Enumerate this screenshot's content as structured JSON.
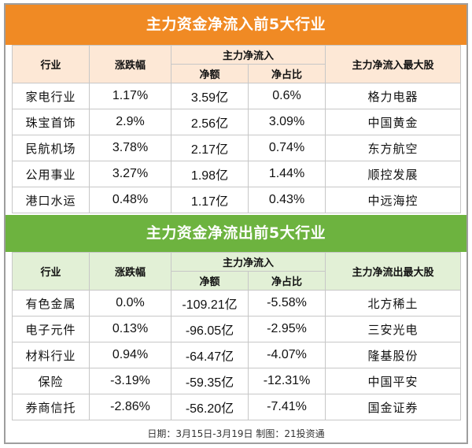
{
  "inflow": {
    "title": "主力资金净流入前5大行业",
    "headers": {
      "industry": "行业",
      "change": "涨跌幅",
      "main_net": "主力净流入",
      "net_amount": "净额",
      "net_ratio": "净占比",
      "top_stock": "主力净流入最大股"
    },
    "rows": [
      {
        "industry": "家电行业",
        "change": "1.17%",
        "amount": "3.59亿",
        "ratio": "0.6%",
        "stock": "格力电器"
      },
      {
        "industry": "珠宝首饰",
        "change": "2.9%",
        "amount": "2.56亿",
        "ratio": "3.09%",
        "stock": "中国黄金"
      },
      {
        "industry": "民航机场",
        "change": "3.78%",
        "amount": "2.17亿",
        "ratio": "0.74%",
        "stock": "东方航空"
      },
      {
        "industry": "公用事业",
        "change": "3.27%",
        "amount": "1.98亿",
        "ratio": "1.44%",
        "stock": "顺控发展"
      },
      {
        "industry": "港口水运",
        "change": "0.48%",
        "amount": "1.17亿",
        "ratio": "0.43%",
        "stock": "中远海控"
      }
    ]
  },
  "outflow": {
    "title": "主力资金净流出前5大行业",
    "headers": {
      "industry": "行业",
      "change": "涨跌幅",
      "main_net": "主力净流入",
      "net_amount": "净额",
      "net_ratio": "净占比",
      "top_stock": "主力净流出最大股"
    },
    "rows": [
      {
        "industry": "有色金属",
        "change": "0.0%",
        "amount": "-109.21亿",
        "ratio": "-5.58%",
        "stock": "北方稀土"
      },
      {
        "industry": "电子元件",
        "change": "0.13%",
        "amount": "-96.05亿",
        "ratio": "-2.95%",
        "stock": "三安光电"
      },
      {
        "industry": "材料行业",
        "change": "0.94%",
        "amount": "-64.47亿",
        "ratio": "-4.07%",
        "stock": "隆基股份"
      },
      {
        "industry": "保险",
        "change": "-3.19%",
        "amount": "-59.35亿",
        "ratio": "-12.31%",
        "stock": "中国平安"
      },
      {
        "industry": "券商信托",
        "change": "-2.86%",
        "amount": "-56.20亿",
        "ratio": "-7.41%",
        "stock": "国金证券"
      }
    ]
  },
  "footer": "日期：3月15日-3月19日  制图：21投资通",
  "colors": {
    "inflow_banner": "#f08a24",
    "outflow_banner": "#6db33f",
    "inflow_header_bg": "#fde8d6",
    "outflow_header_bg": "#e2f0d6"
  }
}
